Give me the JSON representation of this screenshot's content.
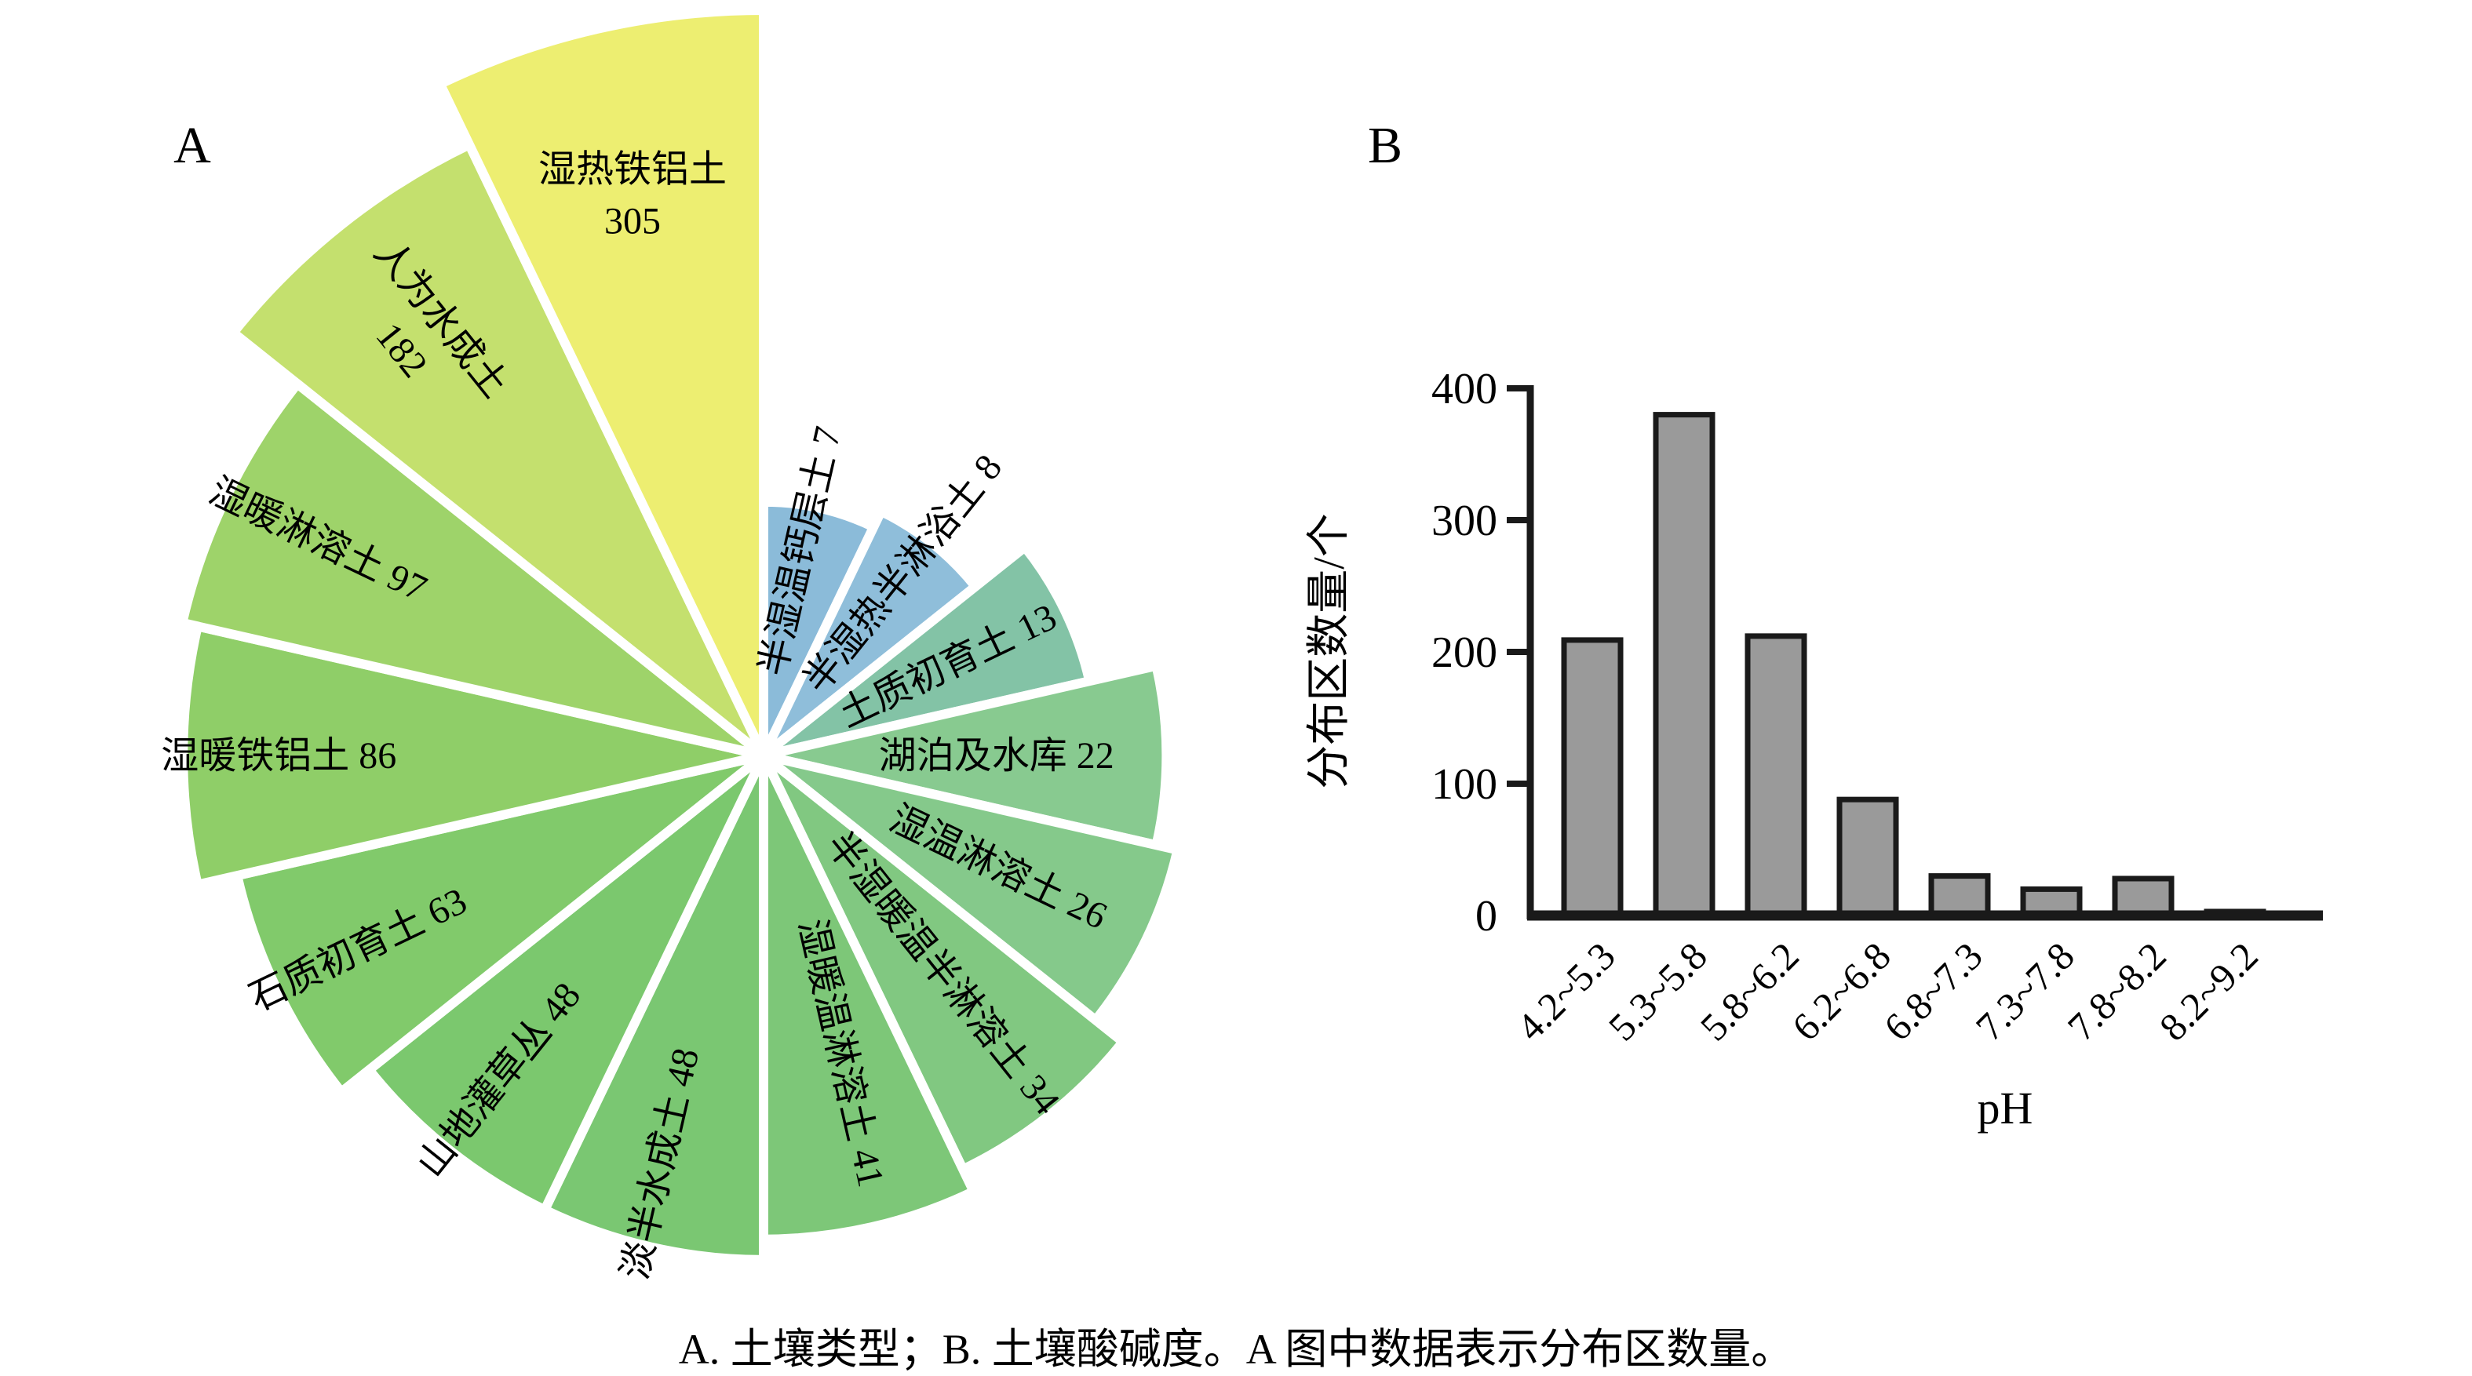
{
  "caption": "A. 土壤类型；B. 土壤酸碱度。A 图中数据表示分布区数量。",
  "panel_a": {
    "label": "A"
  },
  "panel_b": {
    "label": "B"
  },
  "chart_data": [
    {
      "type": "pie",
      "subtype": "nightingale-rose",
      "title": "土壤类型",
      "note": "扇区自正上方起顺时针按数值升序排列，半径按数值对数缩放，数值为分布区数量",
      "sectors": [
        {
          "name": "半湿温钙层土",
          "value": 7,
          "color": "#8bbbd9"
        },
        {
          "name": "半湿热半淋浴土",
          "value": 8,
          "color": "#8fbeda"
        },
        {
          "name": "土质初育土",
          "value": 13,
          "color": "#83c3a6"
        },
        {
          "name": "湖泊及水库",
          "value": 22,
          "color": "#88ca90"
        },
        {
          "name": "湿温淋溶土",
          "value": 26,
          "color": "#85c98b"
        },
        {
          "name": "半湿暖温半淋溶土",
          "value": 34,
          "color": "#81c881"
        },
        {
          "name": "湿暖温淋溶土",
          "value": 41,
          "color": "#7dc778"
        },
        {
          "name": "淡半水成土",
          "value": 48,
          "color": "#7ac772"
        },
        {
          "name": "山地灌草丛",
          "value": 48,
          "color": "#7bc86e"
        },
        {
          "name": "石质初育土",
          "value": 63,
          "color": "#81ca6b"
        },
        {
          "name": "湿暖铁铝土",
          "value": 86,
          "color": "#8fce68"
        },
        {
          "name": "湿暖淋溶土",
          "value": 97,
          "color": "#9ed36a"
        },
        {
          "name": "人为水成土",
          "value": 182,
          "color": "#c4e06e"
        },
        {
          "name": "湿热铁铝土",
          "value": 305,
          "color": "#edee71"
        }
      ]
    },
    {
      "type": "bar",
      "title": "土壤酸碱度",
      "categories": [
        "4.2~5.3",
        "5.3~5.8",
        "5.8~6.2",
        "6.2~6.8",
        "6.8~7.3",
        "7.3~7.8",
        "7.8~8.2",
        "8.2~9.2"
      ],
      "values": [
        209,
        380,
        212,
        88,
        30,
        20,
        28,
        3
      ],
      "xlabel": "pH",
      "ylabel": "分布区数量/个",
      "yticks": [
        0,
        100,
        200,
        300,
        400
      ],
      "ylim": [
        0,
        400
      ],
      "grid": false,
      "legend": "none",
      "bar_color": "#9a9a9a",
      "bar_edge_color": "#1a1a1a"
    }
  ]
}
